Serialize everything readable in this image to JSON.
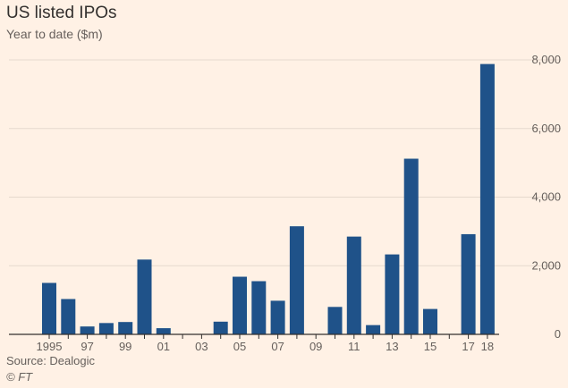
{
  "header": {
    "title": "US listed IPOs",
    "subtitle": "Year to date ($m)"
  },
  "footer": {
    "source": "Source: Dealogic",
    "copyright": "© FT"
  },
  "colors": {
    "background": "#fff1e5",
    "bar": "#1f5289",
    "grid": "#e6d9ce",
    "axis": "#33302e",
    "text": "#66605c"
  },
  "chart_data": {
    "type": "bar",
    "title": "US listed IPOs",
    "subtitle": "Year to date ($m)",
    "xlabel": "",
    "ylabel": "",
    "ylim": [
      0,
      8000
    ],
    "y_ticks": [
      0,
      2000,
      4000,
      6000,
      8000
    ],
    "y_tick_labels": [
      "0",
      "2,000",
      "4,000",
      "6,000",
      "8,000"
    ],
    "grid": true,
    "categories": [
      "1995",
      "1996",
      "1997",
      "1998",
      "1999",
      "2000",
      "2001",
      "2002",
      "2003",
      "2004",
      "2005",
      "2006",
      "2007",
      "2008",
      "2009",
      "2010",
      "2011",
      "2012",
      "2013",
      "2014",
      "2015",
      "2016",
      "2017",
      "2018"
    ],
    "x_tick_labels": [
      "1995",
      "",
      "97",
      "",
      "99",
      "",
      "01",
      "",
      "03",
      "",
      "05",
      "",
      "07",
      "",
      "09",
      "",
      "11",
      "",
      "13",
      "",
      "15",
      "",
      "17",
      "18"
    ],
    "values": [
      1500,
      1030,
      230,
      330,
      360,
      2180,
      180,
      0,
      0,
      370,
      1680,
      1550,
      980,
      3150,
      0,
      800,
      2850,
      270,
      2330,
      5120,
      740,
      0,
      2920,
      7880
    ]
  }
}
